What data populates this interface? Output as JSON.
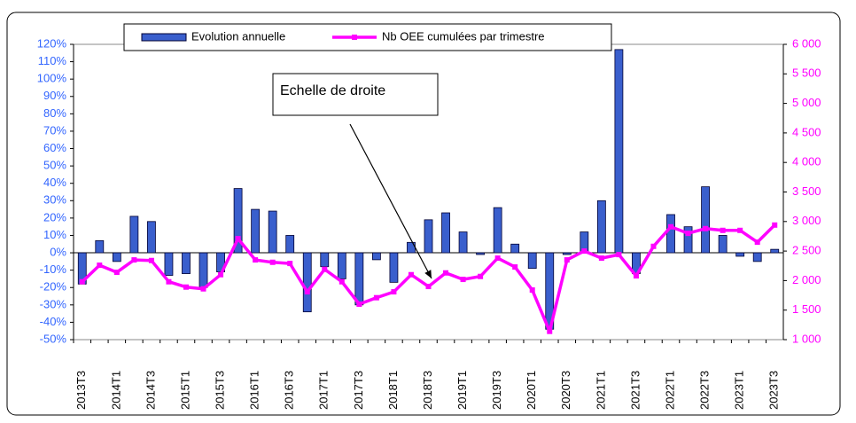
{
  "chart_data": {
    "type": "bar-line",
    "annotation": "Echelle de droite",
    "legend": "top",
    "categories": [
      "2013T3",
      null,
      "2014T1",
      null,
      "2014T3",
      null,
      "2015T1",
      null,
      "2015T3",
      null,
      "2016T1",
      null,
      "2016T3",
      null,
      "2017T1",
      null,
      "2017T3",
      null,
      "2018T1",
      null,
      "2018T3",
      null,
      "2019T1",
      null,
      "2019T3",
      null,
      "2020T1",
      null,
      "2020T3",
      null,
      "2021T1",
      null,
      "2021T3",
      null,
      "2022T1",
      null,
      "2022T3",
      null,
      "2023T1",
      null,
      "2023T3"
    ],
    "series": [
      {
        "name": "Evolution annuelle",
        "type": "bar",
        "color": "#3a5fcd",
        "axis": "y",
        "values": [
          -18,
          7,
          -5,
          21,
          18,
          -13,
          -12,
          -20,
          -11,
          37,
          25,
          24,
          10,
          -34,
          -8,
          -15,
          -30,
          -4,
          -17,
          6,
          19,
          23,
          12,
          -1,
          26,
          5,
          -9,
          -44,
          -1,
          12,
          30,
          117,
          -12,
          0,
          22,
          15,
          38,
          10,
          -2,
          -5,
          2
        ]
      },
      {
        "name": "Nb OEE cumulées par trimestre",
        "type": "line",
        "color": "#ff00ff",
        "axis": "y2",
        "values": [
          1980,
          2260,
          2140,
          2350,
          2340,
          1980,
          1890,
          1860,
          2100,
          2710,
          2350,
          2310,
          2290,
          1810,
          2190,
          1980,
          1600,
          1710,
          1810,
          2100,
          1900,
          2130,
          2020,
          2070,
          2380,
          2230,
          1840,
          1140,
          2350,
          2500,
          2380,
          2440,
          2080,
          2580,
          2910,
          2800,
          2880,
          2850,
          2850,
          2650,
          2940
        ]
      }
    ],
    "ylim": [
      -50,
      120
    ],
    "yticks": [
      {
        "value": -50,
        "label": "-50%"
      },
      {
        "value": -40,
        "label": "-40%"
      },
      {
        "value": -30,
        "label": "-30%"
      },
      {
        "value": -20,
        "label": "-20%"
      },
      {
        "value": -10,
        "label": "-10%"
      },
      {
        "value": 0,
        "label": "0%"
      },
      {
        "value": 10,
        "label": "10%"
      },
      {
        "value": 20,
        "label": "20%"
      },
      {
        "value": 30,
        "label": "30%"
      },
      {
        "value": 40,
        "label": "40%"
      },
      {
        "value": 50,
        "label": "50%"
      },
      {
        "value": 60,
        "label": "60%"
      },
      {
        "value": 70,
        "label": "70%"
      },
      {
        "value": 80,
        "label": "80%"
      },
      {
        "value": 90,
        "label": "90%"
      },
      {
        "value": 100,
        "label": "100%"
      },
      {
        "value": 110,
        "label": "110%"
      },
      {
        "value": 120,
        "label": "120%"
      }
    ],
    "y2lim": [
      1000,
      6000
    ],
    "y2ticks": [
      {
        "value": 1000,
        "label": "1 000"
      },
      {
        "value": 1500,
        "label": "1 500"
      },
      {
        "value": 2000,
        "label": "2 000"
      },
      {
        "value": 2500,
        "label": "2 500"
      },
      {
        "value": 3000,
        "label": "3 000"
      },
      {
        "value": 3500,
        "label": "3 500"
      },
      {
        "value": 4000,
        "label": "4 000"
      },
      {
        "value": 4500,
        "label": "4 500"
      },
      {
        "value": 5000,
        "label": "5 000"
      },
      {
        "value": 5500,
        "label": "5 500"
      },
      {
        "value": 6000,
        "label": "6 000"
      }
    ],
    "yaxis_color": "#3366ff",
    "y2axis_color": "#ff00ff",
    "grid": false
  }
}
